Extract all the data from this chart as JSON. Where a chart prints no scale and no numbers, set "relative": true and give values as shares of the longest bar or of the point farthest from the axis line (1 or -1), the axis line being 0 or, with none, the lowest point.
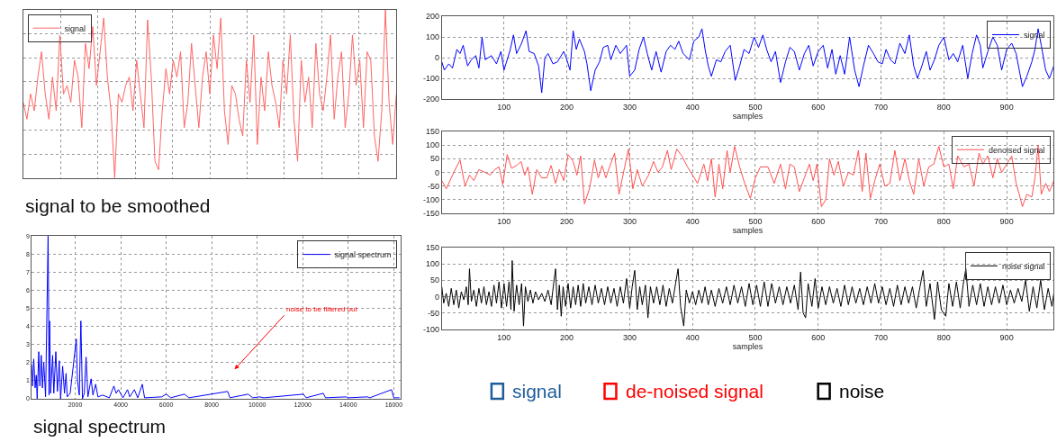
{
  "chart_data": [
    {
      "type": "line",
      "relative": true,
      "tick_labels": false,
      "grid": true,
      "legend": "top left",
      "annotations": [
        "signal to be smoothed"
      ],
      "categories": [
        null,
        null,
        null,
        null,
        null,
        null,
        null,
        null,
        null,
        null,
        null,
        null,
        null,
        null,
        null,
        null,
        null,
        null,
        null,
        null,
        null,
        null,
        null,
        null,
        null,
        null,
        null,
        null,
        null,
        null,
        null,
        null,
        null,
        null,
        null,
        null,
        null,
        null,
        null,
        null,
        null,
        null,
        null,
        null,
        null,
        null,
        null,
        null,
        null,
        null,
        null,
        null,
        null,
        null,
        null,
        null,
        null,
        null,
        null,
        null,
        null,
        null,
        null,
        null,
        null,
        null,
        null,
        null,
        null,
        null,
        null,
        null,
        null,
        null,
        null,
        null,
        null,
        null,
        null,
        null,
        null,
        null,
        null,
        null,
        null,
        null,
        null,
        null,
        null,
        null,
        null,
        null,
        null,
        null,
        null,
        null,
        null,
        null,
        null,
        null,
        null,
        null,
        null
      ],
      "series": [
        {
          "name": "signal",
          "color": "#ff6666",
          "values": [
            0.45,
            0.35,
            0.5,
            0.4,
            0.6,
            0.75,
            0.5,
            0.35,
            0.6,
            0.4,
            0.85,
            0.5,
            0.55,
            0.45,
            0.7,
            0.6,
            0.3,
            0.8,
            0.65,
            0.9,
            0.55,
            0.75,
            0.95,
            0.6,
            0.4,
            0.0,
            0.5,
            0.45,
            0.55,
            0.6,
            0.4,
            0.7,
            0.5,
            0.3,
            0.94,
            0.6,
            0.1,
            0.05,
            0.4,
            0.65,
            0.5,
            0.7,
            0.6,
            0.75,
            0.3,
            0.45,
            0.8,
            0.55,
            0.3,
            0.6,
            0.75,
            0.5,
            0.85,
            0.65,
            0.95,
            0.4,
            0.2,
            0.55,
            0.5,
            0.35,
            0.25,
            0.7,
            0.45,
            0.85,
            0.2,
            0.6,
            0.4,
            0.75,
            0.55,
            0.45,
            0.3,
            0.7,
            0.5,
            0.85,
            0.35,
            0.1,
            0.7,
            0.45,
            0.6,
            0.3,
            0.8,
            0.5,
            0.4,
            0.6,
            0.85,
            0.35,
            0.6,
            0.75,
            0.3,
            0.5,
            0.85,
            0.55,
            0.7,
            0.3,
            0.75,
            0.7,
            0.25,
            0.1,
            0.4,
            1.0,
            0.45,
            0.2,
            0.5
          ]
        }
      ]
    },
    {
      "type": "line",
      "grid": true,
      "legend": "top right",
      "xlim": [
        90,
        16300
      ],
      "ylim": [
        0,
        9
      ],
      "xticks": [
        2000,
        4000,
        6000,
        8000,
        10000,
        12000,
        14000,
        16000
      ],
      "yticks": [
        0,
        1,
        2,
        3,
        4,
        5,
        6,
        7,
        8,
        9
      ],
      "annotations": [
        "noise to be filtered out",
        "signal spectrum"
      ],
      "series": [
        {
          "name": "signal spectrum",
          "color": "#0000ff",
          "x": [
            90,
            125,
            180,
            240,
            290,
            330,
            400,
            450,
            510,
            560,
            620,
            700,
            810,
            830,
            850,
            880,
            920,
            1010,
            1060,
            1150,
            1220,
            1300,
            1360,
            1450,
            1530,
            1600,
            1650,
            1780,
            2050,
            2100,
            2180,
            2250,
            2320,
            2400,
            2480,
            2560,
            2700,
            2780,
            2900,
            3000,
            3200,
            3500,
            3700,
            3800,
            3900,
            4100,
            4300,
            4400,
            4600,
            4750,
            4950,
            5050,
            5800,
            6000,
            6200,
            6800,
            7000,
            8700,
            8800,
            9600,
            9800,
            10100,
            10300,
            12030,
            12150,
            12900,
            13000,
            13900,
            14000,
            14840,
            14950,
            15900,
            16000,
            16250
          ],
          "values": [
            1.9,
            0.7,
            2.2,
            0.6,
            1.3,
            0,
            2.6,
            0.7,
            2.4,
            0.6,
            2.0,
            0.1,
            9.0,
            6.0,
            0.2,
            4.3,
            0.3,
            2.4,
            0.3,
            2.6,
            0.4,
            2.1,
            0,
            1.8,
            0.3,
            1.4,
            0.1,
            0.3,
            3.3,
            1.0,
            0.2,
            4.3,
            0,
            0.3,
            2.3,
            0.1,
            1.1,
            0.2,
            0.8,
            0.1,
            0.2,
            0.05,
            0.7,
            0.3,
            0.5,
            0.05,
            0.5,
            0.1,
            0.5,
            0.05,
            0.8,
            0.05,
            0.1,
            0.25,
            0.05,
            0.25,
            0.05,
            0.4,
            0.05,
            0.25,
            0.05,
            0.1,
            0.05,
            0.25,
            0.05,
            0.3,
            0.05,
            0.1,
            0.05,
            0.1,
            0.05,
            0.5,
            0.05,
            0.05
          ]
        }
      ]
    },
    {
      "type": "line",
      "grid": true,
      "legend": "top right",
      "xlabel": "samples",
      "xlim": [
        1,
        975
      ],
      "ylim": [
        -200,
        200
      ],
      "xticks": [
        100,
        200,
        300,
        400,
        500,
        600,
        700,
        800,
        900
      ],
      "yticks": [
        -200,
        -100,
        0,
        100,
        200
      ],
      "series": [
        {
          "name": "signal",
          "color": "#0000ff",
          "x": [
            1,
            5,
            12,
            18,
            25,
            30,
            35,
            42,
            48,
            55,
            60,
            65,
            70,
            80,
            88,
            95,
            100,
            110,
            115,
            120,
            128,
            135,
            140,
            148,
            155,
            160,
            165,
            170,
            178,
            185,
            195,
            200,
            205,
            210,
            215,
            220,
            228,
            232,
            238,
            245,
            252,
            258,
            265,
            270,
            278,
            285,
            295,
            300,
            308,
            315,
            322,
            328,
            335,
            342,
            350,
            358,
            365,
            372,
            378,
            385,
            395,
            402,
            410,
            415,
            420,
            425,
            430,
            438,
            445,
            452,
            460,
            468,
            475,
            482,
            490,
            498,
            505,
            512,
            518,
            525,
            532,
            540,
            548,
            555,
            562,
            570,
            578,
            585,
            592,
            600,
            608,
            615,
            622,
            628,
            635,
            642,
            650,
            658,
            665,
            672,
            680,
            688,
            695,
            702,
            708,
            715,
            722,
            730,
            738,
            745,
            752,
            758,
            765,
            772,
            778,
            785,
            792,
            800,
            808,
            815,
            822,
            830,
            838,
            845,
            852,
            858,
            862,
            870,
            878,
            885,
            892,
            900,
            908,
            915,
            920,
            925,
            932,
            940,
            945,
            950,
            955,
            962,
            968,
            975
          ],
          "values": [
            -20,
            -60,
            -30,
            -50,
            40,
            20,
            60,
            -40,
            -10,
            10,
            -50,
            100,
            -10,
            10,
            -30,
            30,
            -60,
            40,
            110,
            20,
            70,
            130,
            30,
            20,
            -40,
            -170,
            0,
            20,
            -30,
            -20,
            30,
            -10,
            -60,
            130,
            40,
            90,
            30,
            -30,
            -160,
            -60,
            -20,
            50,
            60,
            -10,
            60,
            20,
            60,
            -90,
            -60,
            40,
            100,
            20,
            -60,
            30,
            -70,
            30,
            60,
            40,
            80,
            20,
            -10,
            80,
            100,
            140,
            40,
            -40,
            -90,
            -10,
            -20,
            30,
            60,
            -110,
            -40,
            40,
            20,
            100,
            50,
            110,
            40,
            -20,
            30,
            -120,
            -20,
            50,
            30,
            -60,
            20,
            60,
            -40,
            30,
            60,
            -50,
            40,
            -80,
            10,
            -80,
            100,
            -60,
            -140,
            -40,
            60,
            20,
            -20,
            -30,
            40,
            -10,
            -30,
            70,
            20,
            110,
            -40,
            -100,
            -40,
            30,
            -60,
            -10,
            60,
            100,
            -10,
            20,
            -20,
            60,
            -100,
            20,
            110,
            60,
            -50,
            30,
            100,
            60,
            -60,
            40,
            70,
            20,
            -60,
            -140,
            -90,
            -20,
            40,
            140,
            60,
            -60,
            -100,
            -40
          ]
        }
      ]
    },
    {
      "type": "line",
      "grid": true,
      "legend": "top right",
      "xlabel": "samples",
      "xlim": [
        1,
        975
      ],
      "ylim": [
        -150,
        150
      ],
      "xticks": [
        100,
        200,
        300,
        400,
        500,
        600,
        700,
        800,
        900
      ],
      "yticks": [
        -150,
        -100,
        -50,
        0,
        50,
        100,
        150
      ],
      "series": [
        {
          "name": "denoised signal",
          "color": "#ff5050",
          "x": [
            1,
            8,
            20,
            30,
            38,
            45,
            52,
            60,
            70,
            78,
            85,
            92,
            98,
            105,
            112,
            120,
            127,
            133,
            138,
            145,
            152,
            160,
            168,
            175,
            182,
            188,
            195,
            202,
            210,
            216,
            222,
            228,
            236,
            244,
            250,
            256,
            262,
            268,
            276,
            283,
            292,
            298,
            305,
            312,
            320,
            330,
            338,
            345,
            352,
            360,
            366,
            375,
            383,
            392,
            400,
            408,
            418,
            424,
            430,
            436,
            442,
            448,
            455,
            460,
            467,
            475,
            483,
            492,
            500,
            508,
            520,
            530,
            540,
            548,
            555,
            562,
            570,
            578,
            586,
            592,
            598,
            605,
            612,
            618,
            625,
            632,
            640,
            648,
            656,
            664,
            670,
            676,
            683,
            690,
            698,
            706,
            714,
            722,
            730,
            738,
            745,
            752,
            760,
            768,
            776,
            784,
            792,
            800,
            808,
            815,
            822,
            832,
            840,
            848,
            856,
            862,
            870,
            878,
            885,
            892,
            900,
            908,
            915,
            920,
            925,
            932,
            940,
            945,
            950,
            955,
            962,
            968,
            975
          ],
          "values": [
            -30,
            -60,
            0,
            45,
            -50,
            -10,
            -30,
            10,
            0,
            -10,
            10,
            20,
            -45,
            65,
            15,
            25,
            40,
            -10,
            20,
            -80,
            10,
            -20,
            -20,
            25,
            -40,
            10,
            -30,
            65,
            40,
            -10,
            60,
            -115,
            -60,
            45,
            -20,
            25,
            -20,
            20,
            70,
            -80,
            20,
            85,
            -60,
            10,
            -50,
            -10,
            40,
            0,
            20,
            80,
            10,
            85,
            60,
            20,
            -10,
            -40,
            30,
            -30,
            50,
            -90,
            30,
            -60,
            80,
            0,
            95,
            20,
            -40,
            -95,
            -20,
            20,
            20,
            -40,
            30,
            -60,
            30,
            20,
            -70,
            -20,
            30,
            -30,
            30,
            -125,
            -100,
            50,
            -10,
            40,
            -50,
            0,
            -10,
            80,
            -70,
            70,
            -95,
            -30,
            30,
            -50,
            -40,
            80,
            -30,
            50,
            -30,
            -80,
            50,
            -50,
            20,
            30,
            95,
            20,
            30,
            -60,
            60,
            20,
            30,
            -50,
            70,
            30,
            60,
            -20,
            50,
            0,
            30,
            60,
            -40,
            -80,
            -125,
            -80,
            -90,
            -20,
            100,
            -80,
            -40,
            -70,
            -30
          ]
        }
      ]
    },
    {
      "type": "line",
      "grid": true,
      "legend": "top right",
      "xlabel": "samples",
      "xlim": [
        1,
        975
      ],
      "ylim": [
        -100,
        150
      ],
      "xticks": [
        100,
        200,
        300,
        400,
        500,
        600,
        700,
        800,
        900
      ],
      "yticks": [
        -100,
        -50,
        0,
        50,
        100,
        150
      ],
      "series": [
        {
          "name": "noise signal",
          "color": "#000000",
          "x": [
            1,
            4,
            8,
            12,
            16,
            20,
            24,
            28,
            32,
            36,
            40,
            43,
            45,
            48,
            52,
            56,
            60,
            64,
            68,
            72,
            76,
            80,
            84,
            88,
            92,
            96,
            100,
            104,
            108,
            111,
            113,
            116,
            120,
            124,
            128,
            131,
            134,
            138,
            142,
            146,
            150,
            155,
            160,
            165,
            170,
            175,
            179,
            182,
            185,
            188,
            191,
            194,
            198,
            202,
            206,
            210,
            214,
            218,
            222,
            226,
            230,
            235,
            240,
            245,
            250,
            255,
            260,
            265,
            270,
            275,
            280,
            285,
            290,
            295,
            300,
            304,
            308,
            312,
            316,
            320,
            325,
            329,
            333,
            338,
            343,
            348,
            353,
            358,
            363,
            368,
            373,
            377,
            381,
            386,
            390,
            395,
            400,
            405,
            410,
            415,
            420,
            425,
            430,
            436,
            442,
            448,
            454,
            460,
            466,
            472,
            478,
            484,
            490,
            496,
            502,
            508,
            514,
            520,
            526,
            532,
            538,
            544,
            550,
            556,
            562,
            568,
            572,
            576,
            580,
            584,
            590,
            595,
            600,
            606,
            612,
            618,
            624,
            630,
            636,
            642,
            648,
            654,
            660,
            666,
            672,
            678,
            684,
            690,
            696,
            702,
            708,
            714,
            720,
            726,
            732,
            738,
            744,
            750,
            756,
            762,
            767,
            772,
            778,
            785,
            790,
            796,
            803,
            808,
            814,
            820,
            826,
            831,
            835,
            840,
            846,
            852,
            858,
            864,
            870,
            876,
            882,
            888,
            894,
            900,
            906,
            912,
            918,
            924,
            930,
            936,
            942,
            948,
            954,
            960,
            966,
            972,
            975
          ],
          "values": [
            30,
            -20,
            10,
            -30,
            25,
            -25,
            20,
            -35,
            15,
            -10,
            30,
            -25,
            85,
            -15,
            20,
            -30,
            25,
            -20,
            30,
            -25,
            15,
            -30,
            35,
            -20,
            45,
            -35,
            40,
            -30,
            45,
            -40,
            110,
            -45,
            35,
            -25,
            40,
            -90,
            30,
            -15,
            20,
            -20,
            15,
            -10,
            10,
            -15,
            20,
            -25,
            40,
            85,
            -40,
            35,
            -60,
            30,
            -30,
            40,
            -35,
            30,
            -25,
            35,
            -30,
            40,
            -20,
            30,
            -25,
            35,
            -20,
            25,
            -25,
            30,
            -20,
            25,
            -30,
            30,
            -20,
            55,
            -35,
            30,
            80,
            -40,
            30,
            -25,
            35,
            -65,
            30,
            -20,
            30,
            -25,
            35,
            -30,
            25,
            -20,
            40,
            85,
            -30,
            -90,
            20,
            -20,
            15,
            -25,
            20,
            -20,
            30,
            -25,
            20,
            -30,
            25,
            -20,
            30,
            -25,
            35,
            -20,
            30,
            -30,
            40,
            -25,
            35,
            -30,
            45,
            -30,
            40,
            -20,
            30,
            -25,
            30,
            -20,
            35,
            -40,
            75,
            -50,
            -65,
            40,
            -30,
            55,
            -35,
            30,
            -25,
            30,
            -20,
            25,
            -30,
            35,
            -25,
            30,
            -20,
            25,
            -25,
            30,
            -20,
            40,
            -20,
            30,
            -25,
            25,
            -30,
            35,
            -25,
            30,
            -20,
            30,
            -35,
            30,
            80,
            -30,
            40,
            -70,
            45,
            -40,
            -60,
            40,
            -30,
            45,
            -35,
            40,
            85,
            -30,
            35,
            -25,
            40,
            -30,
            30,
            -25,
            30,
            -20,
            35,
            -25,
            20,
            -20,
            25,
            -15,
            50,
            -45,
            30,
            -35,
            50,
            -40,
            25,
            -30,
            10
          ]
        }
      ]
    },
    {
      "type": "other",
      "series": [
        {
          "name": "signal",
          "color": "#1f5c99"
        },
        {
          "name": "de-noised signal",
          "color": "#ff0000"
        },
        {
          "name": "noise",
          "color": "#000000"
        }
      ]
    }
  ]
}
